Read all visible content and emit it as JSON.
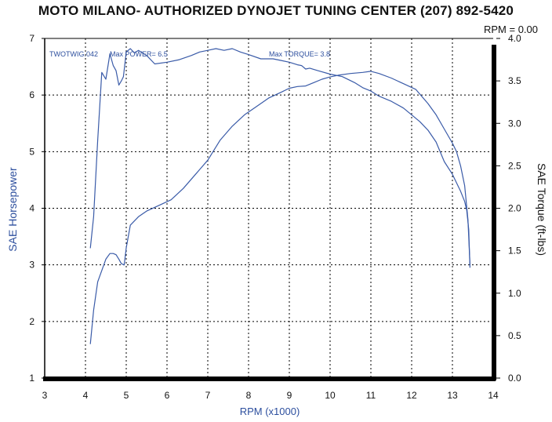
{
  "header": {
    "title": "MOTO MILANO- AUTHORIZED DYNOJET TUNING CENTER (207) 892-5420"
  },
  "readout": {
    "rpm": "RPM = 0.00"
  },
  "annotations": {
    "run_label": "TWOTWIG.042",
    "max_power": "Max POWER= 6.5",
    "max_torque": "Max TORQUE= 3.8"
  },
  "colors": {
    "curve": "#3a5ba8",
    "grid": "#000000",
    "frame": "#000000",
    "text_blue": "#2d4f9e"
  },
  "chart_data": {
    "type": "line",
    "title": "MOTO MILANO- AUTHORIZED DYNOJET TUNING CENTER (207) 892-5420",
    "xlabel": "RPM (x1000)",
    "ylabel": "SAE Horsepower",
    "y2label": "SAE Torque (ft-lbs)",
    "xlim": [
      3,
      14
    ],
    "ylim": [
      1,
      7
    ],
    "y2lim": [
      0,
      4
    ],
    "grid": true,
    "x_ticks": [
      "3",
      "4",
      "5",
      "6",
      "7",
      "8",
      "9",
      "10",
      "11",
      "12",
      "13",
      "14"
    ],
    "y_ticks": [
      "1",
      "2",
      "3",
      "4",
      "5",
      "6",
      "7"
    ],
    "y2_ticks": [
      "0.0",
      "0.5",
      "1.0",
      "1.5",
      "2.0",
      "2.5",
      "3.0",
      "3.5",
      "4.0"
    ],
    "series": [
      {
        "name": "SAE Torque",
        "axis": "right",
        "x": [
          4.12,
          4.2,
          4.3,
          4.4,
          4.5,
          4.6,
          4.68,
          4.75,
          4.82,
          4.88,
          4.93,
          5.0,
          5.1,
          5.2,
          5.3,
          5.5,
          5.7,
          6.0,
          6.3,
          6.6,
          6.8,
          7.0,
          7.2,
          7.4,
          7.6,
          7.8,
          8.0,
          8.3,
          8.6,
          8.8,
          9.0,
          9.2,
          9.3,
          9.4,
          9.5,
          9.7,
          10.0,
          10.3,
          10.6,
          10.8,
          11.0,
          11.2,
          11.5,
          11.8,
          12.0,
          12.2,
          12.4,
          12.6,
          12.8,
          13.0,
          13.1,
          13.2,
          13.3,
          13.35,
          13.4,
          13.43
        ],
        "y": [
          1.53,
          1.9,
          2.8,
          3.6,
          3.52,
          3.82,
          3.68,
          3.62,
          3.45,
          3.5,
          3.55,
          3.84,
          3.88,
          3.83,
          3.86,
          3.8,
          3.7,
          3.72,
          3.75,
          3.8,
          3.84,
          3.86,
          3.88,
          3.86,
          3.88,
          3.84,
          3.81,
          3.76,
          3.76,
          3.74,
          3.72,
          3.69,
          3.68,
          3.64,
          3.65,
          3.62,
          3.58,
          3.55,
          3.48,
          3.42,
          3.38,
          3.32,
          3.26,
          3.18,
          3.1,
          3.02,
          2.92,
          2.78,
          2.55,
          2.4,
          2.3,
          2.2,
          2.08,
          1.98,
          1.75,
          1.3
        ]
      },
      {
        "name": "SAE Horsepower",
        "axis": "left",
        "x": [
          4.12,
          4.2,
          4.3,
          4.4,
          4.5,
          4.6,
          4.68,
          4.75,
          4.82,
          4.88,
          4.95,
          5.0,
          5.1,
          5.3,
          5.5,
          5.8,
          6.1,
          6.4,
          6.7,
          7.0,
          7.3,
          7.6,
          7.9,
          8.2,
          8.5,
          8.8,
          9.0,
          9.2,
          9.4,
          9.6,
          9.8,
          10.0,
          10.2,
          10.5,
          10.8,
          11.0,
          11.2,
          11.5,
          11.8,
          12.1,
          12.4,
          12.6,
          12.8,
          13.0,
          13.1,
          13.2,
          13.3,
          13.38,
          13.43
        ],
        "y": [
          1.6,
          2.2,
          2.7,
          2.9,
          3.1,
          3.2,
          3.2,
          3.18,
          3.1,
          3.02,
          3.0,
          3.3,
          3.7,
          3.85,
          3.95,
          4.05,
          4.15,
          4.35,
          4.6,
          4.85,
          5.2,
          5.45,
          5.65,
          5.8,
          5.95,
          6.05,
          6.12,
          6.15,
          6.16,
          6.22,
          6.28,
          6.32,
          6.35,
          6.38,
          6.4,
          6.42,
          6.38,
          6.3,
          6.2,
          6.1,
          5.85,
          5.65,
          5.4,
          5.15,
          5.0,
          4.75,
          4.4,
          3.8,
          3.0
        ]
      }
    ]
  }
}
